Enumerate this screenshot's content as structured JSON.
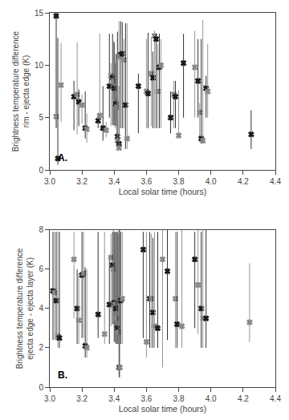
{
  "chart_data": [
    {
      "type": "scatter",
      "annotation": "A.",
      "x_label": "Local solar time (hours)",
      "y_label": "Brightness temperature difference\nrim - ejecta edge (K)",
      "xlim": [
        3.0,
        4.4
      ],
      "xticks": [
        {
          "value": 3.0,
          "label": "3.0"
        },
        3.2,
        3.4,
        3.6,
        3.8,
        {
          "value": 4.0,
          "label": "4.0"
        },
        4.2,
        4.4
      ],
      "ylim": [
        0,
        15
      ],
      "yticks": [
        0,
        5,
        10,
        15
      ],
      "grid": false,
      "marker": "x",
      "x": [
        3.04,
        3.04,
        3.05,
        3.07,
        3.15,
        3.17,
        3.18,
        3.2,
        3.22,
        3.23,
        3.3,
        3.31,
        3.33,
        3.35,
        3.37,
        3.38,
        3.39,
        3.395,
        3.4,
        3.405,
        3.41,
        3.415,
        3.42,
        3.42,
        3.43,
        3.43,
        3.44,
        3.44,
        3.45,
        3.46,
        3.47,
        3.48,
        3.55,
        3.6,
        3.61,
        3.63,
        3.64,
        3.65,
        3.66,
        3.67,
        3.68,
        3.69,
        3.75,
        3.77,
        3.78,
        3.8,
        3.83,
        3.9,
        3.92,
        3.93,
        3.94,
        3.95,
        3.97,
        3.98,
        4.25
      ],
      "values": [
        14.7,
        5.1,
        1.1,
        8.1,
        7.0,
        7.2,
        6.5,
        6.2,
        4.0,
        3.9,
        4.7,
        5.2,
        4.0,
        3.8,
        8.0,
        9.0,
        8.8,
        8.5,
        7.8,
        6.5,
        6.3,
        6.0,
        3.2,
        2.8,
        2.5,
        2.1,
        11.0,
        10.8,
        11.1,
        10.5,
        6.2,
        3.0,
        8.0,
        7.5,
        7.3,
        9.2,
        8.8,
        12.8,
        12.5,
        7.5,
        9.8,
        10.0,
        5.0,
        7.2,
        7.0,
        3.3,
        10.2,
        9.8,
        8.5,
        5.5,
        3.0,
        2.8,
        7.8,
        7.5,
        3.4
      ],
      "yerr_lo": [
        10.7,
        1.1,
        0.6,
        3.5,
        3.2,
        3.8,
        2.3,
        1.8,
        1.0,
        1.3,
        0.7,
        0.5,
        1.2,
        0.7,
        3.0,
        4.8,
        4.5,
        4.3,
        3.5,
        2.5,
        2.1,
        3.8,
        1.0,
        0.8,
        0.5,
        0.1,
        7.0,
        6.8,
        7.1,
        6.5,
        4.2,
        1.0,
        4.5,
        3.5,
        3.3,
        5.0,
        4.8,
        8.8,
        8.5,
        3.5,
        5.8,
        6.0,
        1.5,
        3.2,
        3.0,
        0.3,
        5.2,
        4.8,
        3.5,
        2.5,
        0.5,
        0.3,
        2.8,
        2.5,
        1.4
      ],
      "yerr_hi": [
        0.3,
        7.2,
        11.5,
        4.0,
        1.5,
        5.0,
        1.2,
        1.0,
        3.5,
        1.5,
        0.7,
        7.8,
        4.0,
        0.8,
        5.0,
        1.2,
        4.2,
        3.8,
        4.4,
        3.7,
        4.8,
        5.0,
        10.0,
        8.2,
        5.5,
        12.1,
        3.2,
        2.2,
        3.0,
        2.0,
        7.8,
        11.0,
        1.2,
        5.0,
        5.8,
        3.5,
        2.5,
        0.5,
        0.5,
        4.5,
        3.2,
        2.5,
        2.5,
        1.3,
        1.5,
        4.3,
        2.8,
        3.5,
        4.0,
        0.9,
        9.5,
        11.5,
        1.2,
        4.5,
        2.3
      ],
      "colors": [
        "#1a1a1a",
        "#888888",
        "#1a1a1a",
        "#888888",
        "#1a1a1a",
        "#888888",
        "#1a1a1a",
        "#888888",
        "#1a1a1a",
        "#888888",
        "#1a1a1a",
        "#888888",
        "#1a1a1a",
        "#888888",
        "#1a1a1a",
        "#888888",
        "#1a1a1a",
        "#888888",
        "#1a1a1a",
        "#888888",
        "#1a1a1a",
        "#888888",
        "#1a1a1a",
        "#888888",
        "#1a1a1a",
        "#888888",
        "#1a1a1a",
        "#888888",
        "#1a1a1a",
        "#888888",
        "#1a1a1a",
        "#888888",
        "#1a1a1a",
        "#888888",
        "#1a1a1a",
        "#888888",
        "#1a1a1a",
        "#888888",
        "#1a1a1a",
        "#888888",
        "#1a1a1a",
        "#888888",
        "#1a1a1a",
        "#888888",
        "#1a1a1a",
        "#888888",
        "#1a1a1a",
        "#888888",
        "#1a1a1a",
        "#888888",
        "#1a1a1a",
        "#888888",
        "#1a1a1a",
        "#888888",
        "#1a1a1a"
      ]
    },
    {
      "type": "scatter",
      "annotation": "B.",
      "x_label": "Local solar time (hours)",
      "y_label": "Brightness temperature difference\nejecta edge - ejecta layer (K)",
      "xlim": [
        3.0,
        4.4
      ],
      "xticks": [
        {
          "value": 3.0,
          "label": "3.0"
        },
        3.2,
        3.4,
        3.6,
        3.8,
        {
          "value": 4.0,
          "label": "4.0"
        },
        4.2,
        4.4
      ],
      "ylim": [
        0,
        8
      ],
      "yticks": [
        0,
        2,
        4,
        6,
        8
      ],
      "grid": false,
      "marker": "x",
      "x": [
        3.02,
        3.03,
        3.04,
        3.05,
        3.06,
        3.15,
        3.17,
        3.18,
        3.2,
        3.21,
        3.22,
        3.23,
        3.3,
        3.34,
        3.37,
        3.38,
        3.39,
        3.395,
        3.4,
        3.405,
        3.41,
        3.415,
        3.42,
        3.425,
        3.43,
        3.435,
        3.44,
        3.45,
        3.58,
        3.6,
        3.62,
        3.63,
        3.64,
        3.65,
        3.67,
        3.7,
        3.73,
        3.78,
        3.79,
        3.82,
        3.9,
        3.92,
        3.94,
        3.95,
        3.97,
        4.24
      ],
      "values": [
        4.9,
        4.8,
        4.4,
        2.6,
        2.5,
        6.5,
        4.0,
        3.4,
        5.7,
        5.8,
        2.1,
        2.0,
        3.7,
        2.7,
        4.2,
        6.6,
        6.2,
        6.0,
        4.3,
        4.2,
        4.0,
        3.5,
        3.0,
        2.8,
        1.0,
        1.0,
        4.4,
        4.5,
        7.0,
        2.3,
        4.5,
        4.5,
        3.8,
        3.1,
        3.0,
        6.5,
        5.9,
        4.5,
        3.2,
        3.1,
        6.5,
        5.2,
        4.0,
        3.5,
        3.5,
        3.3
      ],
      "yerr_lo": [
        2.5,
        2.4,
        2.0,
        0.6,
        0.5,
        3.0,
        1.8,
        1.2,
        3.2,
        3.3,
        0.6,
        0.5,
        1.2,
        0.5,
        2.0,
        3.5,
        3.0,
        2.8,
        2.0,
        1.9,
        1.8,
        1.3,
        0.8,
        0.6,
        0.5,
        0.5,
        2.2,
        2.3,
        4.5,
        0.8,
        2.5,
        2.5,
        1.8,
        1.1,
        1.0,
        5.5,
        3.5,
        2.5,
        1.2,
        1.1,
        3.5,
        2.5,
        2.0,
        1.5,
        1.5,
        1.0
      ],
      "yerr_hi": [
        3.0,
        3.1,
        3.5,
        5.3,
        5.4,
        1.4,
        2.0,
        2.4,
        2.2,
        2.1,
        4.0,
        4.0,
        4.2,
        5.2,
        2.5,
        1.2,
        1.7,
        2.0,
        3.6,
        3.7,
        3.9,
        4.4,
        4.9,
        5.0,
        7.0,
        7.0,
        3.5,
        3.4,
        0.9,
        5.6,
        3.4,
        3.3,
        3.8,
        4.8,
        4.9,
        1.5,
        2.1,
        3.4,
        4.7,
        4.9,
        1.4,
        2.8,
        3.9,
        4.5,
        4.5,
        3.0
      ],
      "colors": [
        "#1a1a1a",
        "#888888",
        "#1a1a1a",
        "#888888",
        "#1a1a1a",
        "#888888",
        "#1a1a1a",
        "#888888",
        "#1a1a1a",
        "#888888",
        "#1a1a1a",
        "#888888",
        "#1a1a1a",
        "#888888",
        "#1a1a1a",
        "#888888",
        "#1a1a1a",
        "#888888",
        "#1a1a1a",
        "#888888",
        "#1a1a1a",
        "#888888",
        "#1a1a1a",
        "#888888",
        "#1a1a1a",
        "#888888",
        "#1a1a1a",
        "#888888",
        "#1a1a1a",
        "#888888",
        "#1a1a1a",
        "#888888",
        "#1a1a1a",
        "#888888",
        "#1a1a1a",
        "#888888",
        "#1a1a1a",
        "#888888",
        "#1a1a1a",
        "#888888",
        "#1a1a1a",
        "#888888",
        "#1a1a1a",
        "#888888",
        "#1a1a1a",
        "#888888"
      ]
    }
  ]
}
